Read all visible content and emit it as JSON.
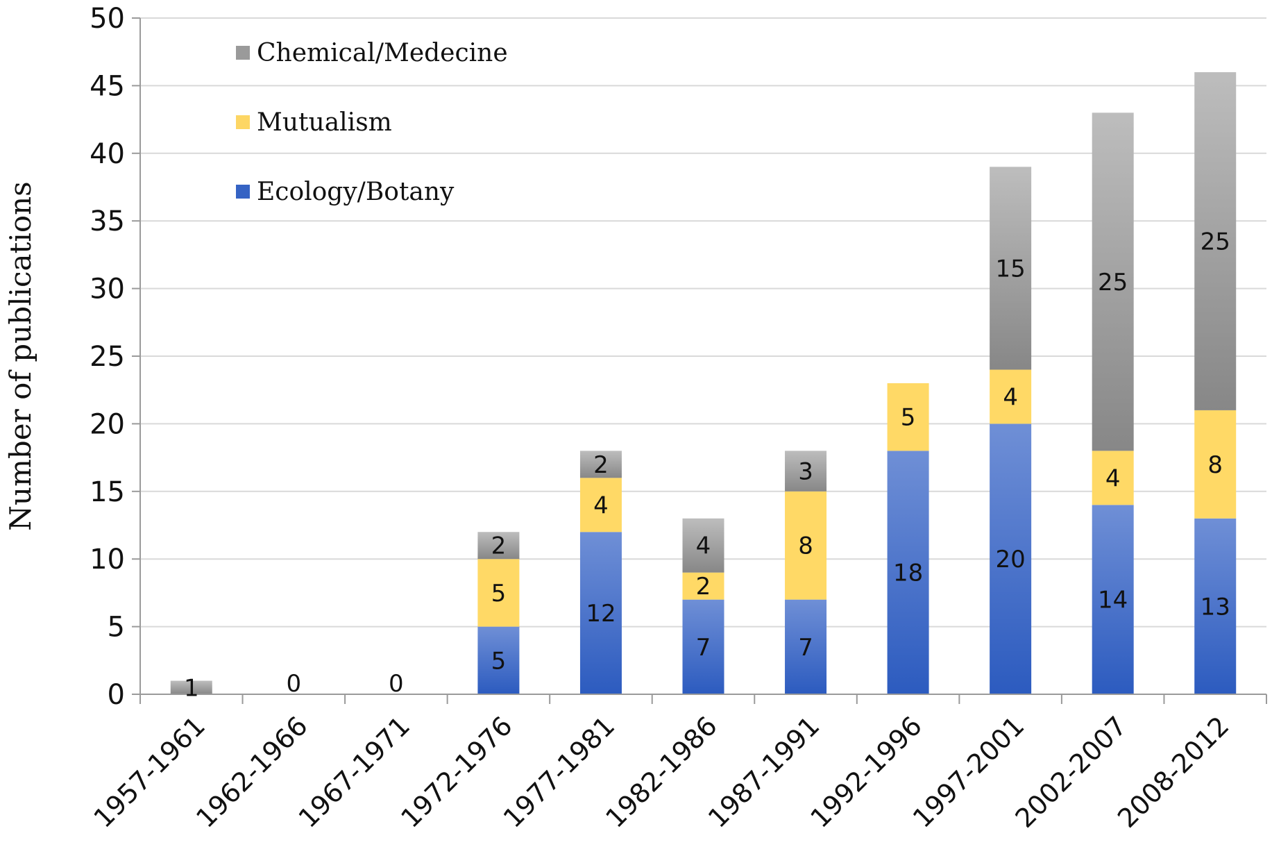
{
  "chart_data": {
    "type": "bar",
    "stacked": true,
    "ylabel": "Number of publications",
    "xlabel": "",
    "ylim": [
      0,
      50
    ],
    "yticks": [
      0,
      5,
      10,
      15,
      20,
      25,
      30,
      35,
      40,
      45,
      50
    ],
    "grid": "horizontal",
    "legend_position": "top-left",
    "categories": [
      "1957-1961",
      "1962-1966",
      "1967-1971",
      "1972-1976",
      "1977-1981",
      "1982-1986",
      "1987-1991",
      "1992-1996",
      "1997-2001",
      "2002-2007",
      "2008-2012"
    ],
    "series": [
      {
        "name": "Ecology/Botany",
        "color": "#3563c4",
        "values": [
          0,
          0,
          0,
          5,
          12,
          7,
          7,
          18,
          20,
          14,
          13
        ]
      },
      {
        "name": "Mutualism",
        "color": "#fdd664",
        "values": [
          0,
          0,
          0,
          5,
          4,
          2,
          8,
          5,
          4,
          4,
          8
        ]
      },
      {
        "name": "Chemical/Medecine",
        "color": "#9a9a9a",
        "values": [
          1,
          0,
          0,
          2,
          2,
          4,
          3,
          0,
          15,
          25,
          25
        ]
      }
    ],
    "segment_labels": [
      [
        "",
        "",
        "1"
      ],
      [
        "0",
        "",
        ""
      ],
      [
        "0",
        "",
        ""
      ],
      [
        "5",
        "5",
        "2"
      ],
      [
        "12",
        "4",
        "2"
      ],
      [
        "7",
        "2",
        "4"
      ],
      [
        "7",
        "8",
        "3"
      ],
      [
        "18",
        "5",
        ""
      ],
      [
        "20",
        "4",
        "15"
      ],
      [
        "14",
        "4",
        "25"
      ],
      [
        "13",
        "8",
        "25"
      ]
    ],
    "legend_order": [
      "Chemical/Medecine",
      "Mutualism",
      "Ecology/Botany"
    ]
  }
}
